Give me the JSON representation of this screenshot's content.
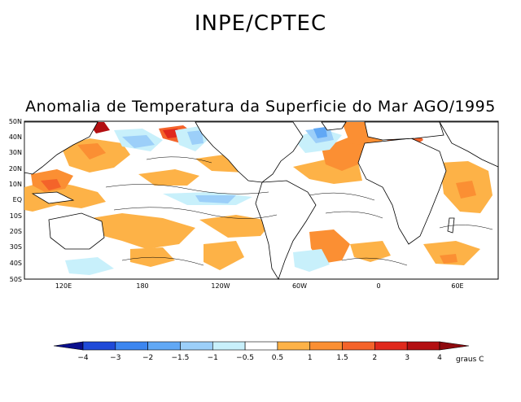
{
  "header": "INPE/CPTEC",
  "title": "Anomalia de Temperatura da Superficie do Mar AGO/1995",
  "lat_labels": [
    "50N",
    "40N",
    "30N",
    "20N",
    "10N",
    "EQ",
    "10S",
    "20S",
    "30S",
    "40S",
    "50S"
  ],
  "lon_labels": [
    "120E",
    "180",
    "120W",
    "60W",
    "0",
    "60E"
  ],
  "colorbar": {
    "labels": [
      "-4",
      "-3",
      "-2",
      "-1.5",
      "-1",
      "-0.5",
      "0.5",
      "1",
      "1.5",
      "2",
      "3",
      "4"
    ],
    "units": "graus C",
    "colors": [
      "#0a0f8c",
      "#1f4ad8",
      "#3c86f0",
      "#61a8f5",
      "#9ccff9",
      "#c8f0fb",
      "#ffffff",
      "#fdb247",
      "#fb8f33",
      "#f4632a",
      "#e0291c",
      "#b30f12",
      "#8e0a0e"
    ]
  },
  "anomaly_colors": {
    "warm_05_1": "#fdb247",
    "warm_1_15": "#fb8f33",
    "warm_15_2": "#f4632a",
    "warm_2_3": "#e0291c",
    "warm_3_4": "#b30f12",
    "cold_05_1": "#c8f0fb",
    "cold_1_15": "#9ccff9",
    "cold_15_2": "#61a8f5"
  }
}
